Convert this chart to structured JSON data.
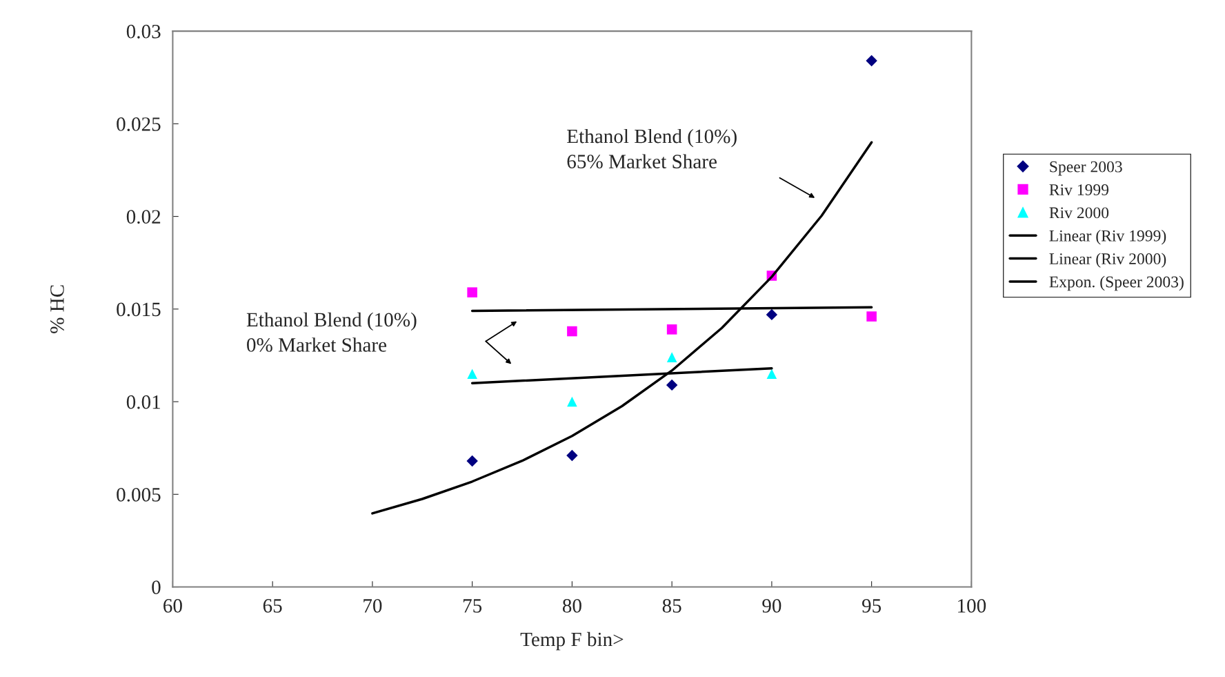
{
  "chart_data": {
    "type": "scatter",
    "xlabel": "Temp F bin>",
    "ylabel": "% HC",
    "xlim": [
      60,
      100
    ],
    "xticks": [
      60,
      65,
      70,
      75,
      80,
      85,
      90,
      95,
      100
    ],
    "ylim": [
      0,
      0.03
    ],
    "yticks": [
      0,
      0.005,
      0.01,
      0.015,
      0.02,
      0.025,
      0.03
    ],
    "grid": false,
    "legend": "right",
    "series": [
      {
        "name": "Speer 2003",
        "marker": "diamond",
        "color": "#000080",
        "x": [
          75,
          80,
          85,
          90,
          95
        ],
        "values": [
          0.0068,
          0.0071,
          0.0109,
          0.0147,
          0.0284
        ]
      },
      {
        "name": "Riv 1999",
        "marker": "square",
        "color": "#ff00ff",
        "x": [
          75,
          80,
          85,
          90,
          95
        ],
        "values": [
          0.0159,
          0.0138,
          0.0139,
          0.0168,
          0.0146
        ]
      },
      {
        "name": "Riv 2000",
        "marker": "triangle",
        "color": "#00ffff",
        "x": [
          75,
          80,
          85,
          90
        ],
        "values": [
          0.0115,
          0.01,
          0.0124,
          0.0115
        ]
      },
      {
        "name": "Linear (Riv 1999)",
        "type": "line",
        "color": "#000000",
        "x": [
          75,
          95
        ],
        "values": [
          0.0149,
          0.0151
        ]
      },
      {
        "name": "Linear (Riv 2000)",
        "type": "line",
        "color": "#000000",
        "x": [
          75,
          90
        ],
        "values": [
          0.011,
          0.0118
        ]
      },
      {
        "name": "Expon. (Speer 2003)",
        "type": "line",
        "color": "#000000",
        "x": [
          70,
          72.5,
          75,
          77.5,
          80,
          82.5,
          85,
          87.5,
          90,
          92.5,
          95
        ],
        "values": [
          0.00397,
          0.00475,
          0.00569,
          0.00681,
          0.00815,
          0.00976,
          0.01168,
          0.01398,
          0.01674,
          0.02004,
          0.024
        ]
      }
    ],
    "annotations": [
      "Ethanol Blend (10%)\n65% Market Share",
      "Ethanol Blend (10%)\n0% Market Share"
    ]
  }
}
